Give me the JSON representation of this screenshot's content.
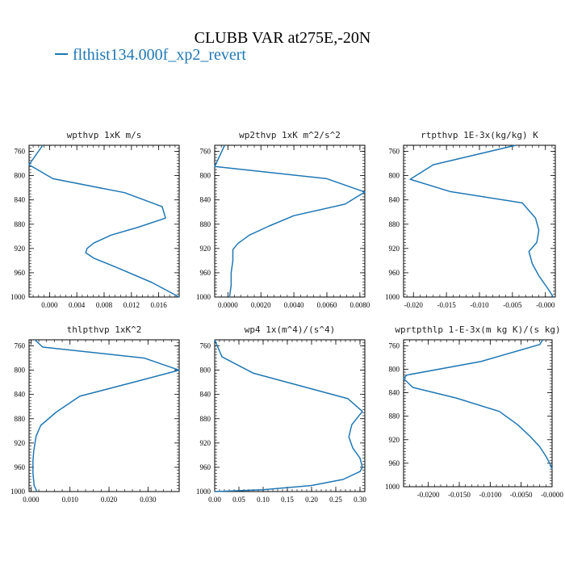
{
  "title": "CLUBB VAR at275E,-20N",
  "legend": {
    "label": "flthist134.000f_xp2_revert",
    "color": "#1f77b4"
  },
  "chart_data": [
    {
      "type": "line",
      "title": "wpthvp  1xK m/s",
      "xlim": [
        -0.003,
        0.019
      ],
      "ylim": [
        1000,
        750
      ],
      "xticks": [
        0.0,
        0.004,
        0.008,
        0.012,
        0.016
      ],
      "xtick_labels": [
        "0.000",
        "0.004",
        "0.008",
        "0.012",
        "0.016"
      ],
      "yticks": [
        760,
        800,
        840,
        880,
        920,
        960,
        1000
      ],
      "ytick_labels": [
        "760",
        "800",
        "840",
        "880",
        "920",
        "960",
        "1000"
      ],
      "series": [
        {
          "x": [
            -0.001,
            -0.003,
            0.0005,
            0.011,
            0.0165,
            0.017,
            0.013,
            0.009,
            0.0065,
            0.0055,
            0.0053,
            0.0065,
            0.01,
            0.015,
            0.019
          ],
          "y": [
            750,
            782,
            805,
            828,
            851,
            870,
            885,
            898,
            911,
            920,
            927,
            936,
            952,
            976,
            1000
          ]
        }
      ]
    },
    {
      "type": "line",
      "title": "wp2thvp  1xK m^2/s^2",
      "xlim": [
        -0.0008,
        0.0083
      ],
      "ylim": [
        1000,
        750
      ],
      "xticks": [
        0.0,
        0.002,
        0.004,
        0.006,
        0.008
      ],
      "xtick_labels": [
        "0.0000",
        "0.0020",
        "0.0040",
        "0.0060",
        "0.0080"
      ],
      "yticks": [
        760,
        800,
        840,
        880,
        920,
        960,
        1000
      ],
      "ytick_labels": [
        "760",
        "800",
        "840",
        "880",
        "920",
        "960",
        "1000"
      ],
      "series": [
        {
          "x": [
            -0.0002,
            -0.0008,
            0.006,
            0.0083,
            0.0071,
            0.004,
            0.0025,
            0.0013,
            0.0006,
            0.0003,
            0.0003,
            0.0002,
            0.0002,
            0.0001
          ],
          "y": [
            750,
            785,
            805,
            827,
            847,
            866,
            883,
            898,
            912,
            922,
            940,
            960,
            980,
            1000
          ]
        }
      ]
    },
    {
      "type": "line",
      "title": "rtpthvp  1E-3x(kg/kg) K",
      "xlim": [
        -0.0215,
        0.0015
      ],
      "ylim": [
        1000,
        750
      ],
      "xticks": [
        -0.02,
        -0.015,
        -0.01,
        -0.005,
        0.0
      ],
      "xtick_labels": [
        "-0.020",
        "-0.015",
        "-0.010",
        "-0.005",
        "-0.000"
      ],
      "yticks": [
        760,
        800,
        840,
        880,
        920,
        960,
        1000
      ],
      "ytick_labels": [
        "760",
        "800",
        "840",
        "880",
        "920",
        "960",
        "1000"
      ],
      "series": [
        {
          "x": [
            -0.0045,
            -0.017,
            -0.0205,
            -0.0145,
            -0.0035,
            -0.0015,
            -0.001,
            -0.0013,
            -0.0025,
            -0.002,
            -0.001,
            0.0005,
            0.0012
          ],
          "y": [
            750,
            782,
            806,
            826,
            845,
            870,
            890,
            910,
            925,
            945,
            965,
            988,
            1000
          ]
        }
      ]
    },
    {
      "type": "line",
      "title": "thlpthvp  1xK^2",
      "xlim": [
        -0.0005,
        0.038
      ],
      "ylim": [
        1000,
        750
      ],
      "xticks": [
        0.0,
        0.01,
        0.02,
        0.03
      ],
      "xtick_labels": [
        "0.000",
        "0.010",
        "0.020",
        "0.030"
      ],
      "yticks": [
        760,
        800,
        840,
        880,
        920,
        960,
        1000
      ],
      "ytick_labels": [
        "760",
        "800",
        "840",
        "880",
        "920",
        "960",
        "1000"
      ],
      "series": [
        {
          "x": [
            0.001,
            0.003,
            0.029,
            0.038,
            0.028,
            0.0125,
            0.0065,
            0.0025,
            0.0013,
            0.0007,
            0.0005,
            0.0005,
            0.0008,
            0.0015
          ],
          "y": [
            750,
            762,
            780,
            800,
            817,
            843,
            869,
            891,
            909,
            933,
            950,
            970,
            990,
            1000
          ]
        }
      ]
    },
    {
      "type": "line",
      "title": "wp4  1x(m^4)/(s^4)",
      "xlim": [
        0.0,
        0.31
      ],
      "ylim": [
        1000,
        750
      ],
      "xticks": [
        0.0,
        0.05,
        0.1,
        0.15,
        0.2,
        0.25,
        0.3
      ],
      "xtick_labels": [
        "0.00",
        "0.05",
        "0.10",
        "0.15",
        "0.20",
        "0.25",
        "0.30"
      ],
      "yticks": [
        760,
        800,
        840,
        880,
        920,
        960,
        1000
      ],
      "ytick_labels": [
        "760",
        "800",
        "840",
        "880",
        "920",
        "960",
        "1000"
      ],
      "series": [
        {
          "x": [
            0.0,
            0.015,
            0.08,
            0.275,
            0.305,
            0.283,
            0.277,
            0.285,
            0.3,
            0.305,
            0.3,
            0.265,
            0.2,
            0.1,
            0.0
          ],
          "y": [
            750,
            778,
            805,
            847,
            868,
            890,
            910,
            928,
            945,
            960,
            967,
            980,
            990,
            997,
            1000
          ]
        }
      ]
    },
    {
      "type": "line",
      "title": "wprtpthlp  1-E-3x(m kg K)/(s kg)",
      "xlim": [
        -0.024,
        0.0
      ],
      "ylim": [
        1000,
        750
      ],
      "xticks": [
        -0.02,
        -0.015,
        -0.01,
        -0.005,
        0.0
      ],
      "xtick_labels": [
        "-0.0200",
        "-0.0150",
        "-0.0100",
        "-0.0050",
        "-0.0000"
      ],
      "yticks": [
        760,
        800,
        840,
        880,
        920,
        960,
        1000
      ],
      "ytick_labels": [
        "760",
        "800",
        "840",
        "880",
        "920",
        "960",
        "1000"
      ],
      "series": [
        {
          "x": [
            -0.0015,
            -0.002,
            -0.0115,
            -0.0235,
            -0.024,
            -0.0225,
            -0.0155,
            -0.0085,
            -0.0055,
            -0.0035,
            -0.002,
            -0.001,
            -0.0003,
            0.0
          ],
          "y": [
            750,
            758,
            787,
            810,
            816,
            831,
            849,
            872,
            895,
            915,
            932,
            948,
            962,
            970
          ]
        }
      ]
    }
  ]
}
